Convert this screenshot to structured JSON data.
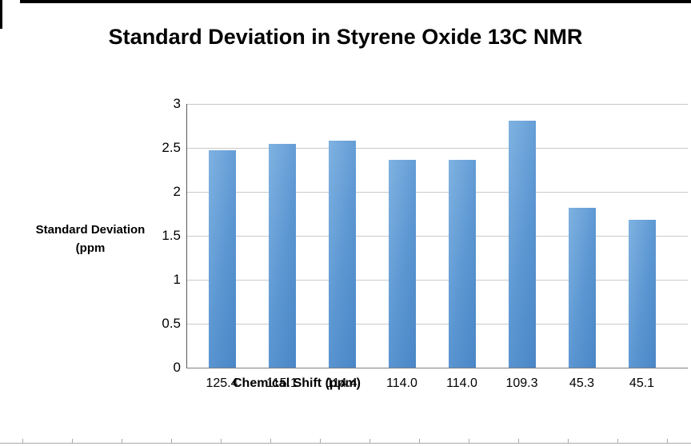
{
  "chart_data": {
    "type": "bar",
    "title": "Standard Deviation in Styrene Oxide 13C NMR",
    "y_axis_title_line1": "Standard Deviation",
    "y_axis_title_line2": "(ppm",
    "x_axis_title": "Chemical Shift (ppm)",
    "categories": [
      "125.4",
      "115.1",
      "114.4",
      "114.0",
      "114.0",
      "109.3",
      "45.3",
      "45.1"
    ],
    "values": [
      2.47,
      2.55,
      2.58,
      2.36,
      2.36,
      2.81,
      1.82,
      1.68
    ],
    "ylim": [
      0,
      3
    ],
    "y_ticks": [
      "3",
      "2.5",
      "2",
      "1.5",
      "1",
      "0.5",
      "0"
    ],
    "grid": true,
    "legend": false,
    "bar_colors": [
      "#7fb2e1",
      "#5b96d2",
      "#4a86c6"
    ]
  }
}
